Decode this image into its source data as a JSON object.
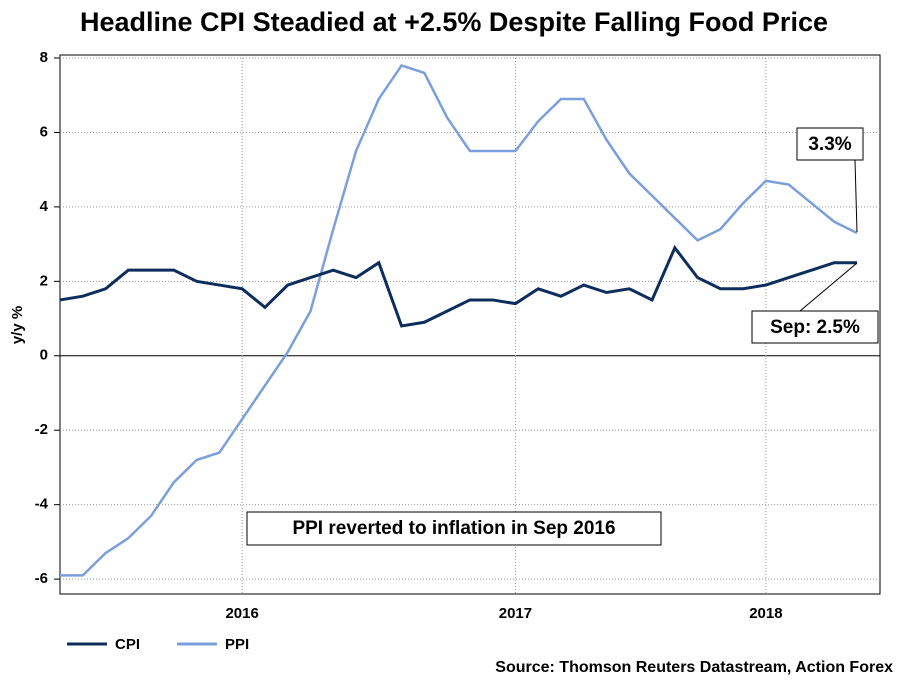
{
  "chart_data": {
    "type": "line",
    "title": "Headline CPI Steadied at +2.5% Despite Falling Food Price",
    "y_label": "y/y %",
    "source": "Source: Thomson Reuters Datastream, Action Forex",
    "annotations": [
      "3.3%",
      "Sep: 2.5%",
      "PPI reverted to inflation in Sep 2016"
    ],
    "categories": [
      null,
      null,
      null,
      null,
      null,
      null,
      null,
      null,
      "2016",
      null,
      null,
      null,
      null,
      null,
      null,
      null,
      null,
      null,
      null,
      null,
      "2017",
      null,
      null,
      null,
      null,
      null,
      null,
      null,
      null,
      null,
      null,
      "2018",
      null,
      null,
      null,
      null
    ],
    "series": [
      {
        "name": "CPI",
        "color": "#0d2e5c",
        "values": [
          1.5,
          1.6,
          1.8,
          2.3,
          2.3,
          2.3,
          2.0,
          1.9,
          1.8,
          1.3,
          1.9,
          2.1,
          2.3,
          2.1,
          2.5,
          0.8,
          0.9,
          1.2,
          1.5,
          1.5,
          1.4,
          1.8,
          1.6,
          1.9,
          1.7,
          1.8,
          1.5,
          2.9,
          2.1,
          1.8,
          1.8,
          1.9,
          2.1,
          2.3,
          2.5,
          2.5
        ]
      },
      {
        "name": "PPI",
        "color": "#7b9fdb",
        "values": [
          -5.9,
          -5.9,
          -5.3,
          -4.9,
          -4.3,
          -3.4,
          -2.8,
          -2.6,
          -1.7,
          -0.8,
          0.1,
          1.2,
          3.4,
          5.5,
          6.9,
          7.8,
          7.6,
          6.4,
          5.5,
          5.5,
          5.5,
          6.3,
          6.9,
          6.9,
          5.8,
          4.9,
          4.3,
          3.7,
          3.1,
          3.4,
          4.1,
          4.7,
          4.6,
          4.1,
          3.6,
          3.3
        ]
      }
    ],
    "ylim": [
      -6.4,
      8
    ],
    "yticks": [
      -6,
      -4,
      -2,
      0,
      2,
      4,
      6,
      8
    ],
    "grid": true,
    "legend": "bottom-left"
  }
}
